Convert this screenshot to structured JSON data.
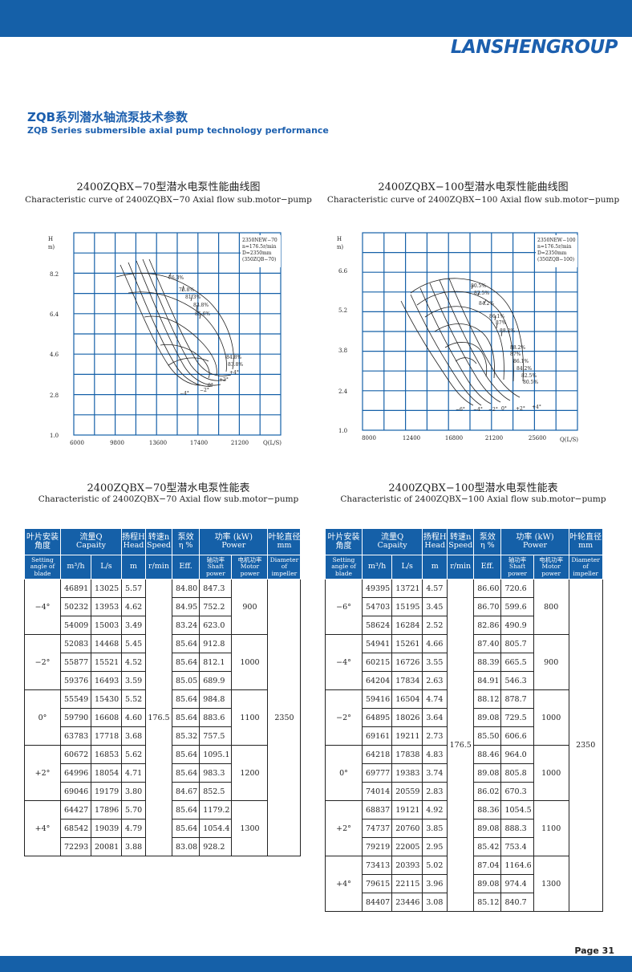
{
  "brand": "LANSHENGROUP",
  "section": {
    "title_cn": "ZQB系列潜水轴流泵技术参数",
    "title_en": "ZQB Series submersible axial pump technology performance"
  },
  "charts": [
    {
      "title_cn": "2400ZQBX−70型潜水电泵性能曲线图",
      "title_en": "Characteristic curve of 2400ZQBX−70 Axial flow sub.motor−pump",
      "y_label": "H",
      "y_unit": "(m)",
      "x_label": "Q(L/S)",
      "x_ticks": [
        "6000",
        "9800",
        "13600",
        "17400",
        "21200"
      ],
      "y_ticks": [
        "8.2",
        "6.4",
        "4.6",
        "2.8",
        "1.0"
      ],
      "info": [
        "2350NEW−70",
        "n=176.5r/min",
        "D=2350mm",
        "(350ZQB−70)"
      ],
      "eff_labels": [
        "76.3%",
        "78.8%",
        "81.3%",
        "83.8%",
        "85.6%",
        "84.8%",
        "83.8%"
      ],
      "angle_labels": [
        "−4°",
        "−2°",
        "0°",
        "+2°",
        "+4°"
      ]
    },
    {
      "title_cn": "2400ZQBX−100型潜水电泵性能曲线图",
      "title_en": "Characteristic curve of 2400ZQBX−100 Axial flow sub.motor−pump",
      "y_label": "H",
      "y_unit": "(m)",
      "x_label": "Q(L/S)",
      "x_ticks": [
        "8000",
        "12400",
        "16800",
        "21200",
        "25600"
      ],
      "y_ticks": [
        "6.6",
        "5.2",
        "3.8",
        "2.4",
        "1.0"
      ],
      "info": [
        "2350NEW−100",
        "n=176.5r/min",
        "D=2350mm",
        "(350ZQB−100)"
      ],
      "eff_labels": [
        "80.5%",
        "82.5%",
        "84.2%",
        "86.1%",
        "87%",
        "88.2%",
        "88.2%",
        "87%",
        "86.1%",
        "84.2%",
        "82.5%",
        "80.5%"
      ],
      "angle_labels": [
        "−6°",
        "−4°",
        "−2°",
        "0°",
        "+2°",
        "+4°"
      ]
    }
  ],
  "tables": [
    {
      "title_cn": "2400ZQBX−70型潜水电泵性能表",
      "title_en": "Characteristic  of 2400ZQBX−70 Axial flow sub.motor−pump",
      "speed": "176.5",
      "diameter": "2350",
      "groups": [
        {
          "angle": "−4°",
          "motor": "900",
          "rows": [
            [
              "46891",
              "13025",
              "5.57",
              "84.80",
              "847.3"
            ],
            [
              "50232",
              "13953",
              "4.62",
              "84.95",
              "752.2"
            ],
            [
              "54009",
              "15003",
              "3.49",
              "83.24",
              "623.0"
            ]
          ]
        },
        {
          "angle": "−2°",
          "motor": "1000",
          "rows": [
            [
              "52083",
              "14468",
              "5.45",
              "85.64",
              "912.8"
            ],
            [
              "55877",
              "15521",
              "4.52",
              "85.64",
              "812.1"
            ],
            [
              "59376",
              "16493",
              "3.59",
              "85.05",
              "689.9"
            ]
          ]
        },
        {
          "angle": "0°",
          "motor": "1100",
          "rows": [
            [
              "55549",
              "15430",
              "5.52",
              "85.64",
              "984.8"
            ],
            [
              "59790",
              "16608",
              "4.60",
              "85.64",
              "883.6"
            ],
            [
              "63783",
              "17718",
              "3.68",
              "85.32",
              "757.5"
            ]
          ]
        },
        {
          "angle": "+2°",
          "motor": "1200",
          "rows": [
            [
              "60672",
              "16853",
              "5.62",
              "85.64",
              "1095.1"
            ],
            [
              "64996",
              "18054",
              "4.71",
              "85.64",
              "983.3"
            ],
            [
              "69046",
              "19179",
              "3.80",
              "84.67",
              "852.5"
            ]
          ]
        },
        {
          "angle": "+4°",
          "motor": "1300",
          "rows": [
            [
              "64427",
              "17896",
              "5.70",
              "85.64",
              "1179.2"
            ],
            [
              "68542",
              "19039",
              "4.79",
              "85.64",
              "1054.4"
            ],
            [
              "72293",
              "20081",
              "3.88",
              "83.08",
              "928.2"
            ]
          ]
        }
      ]
    },
    {
      "title_cn": "2400ZQBX−100型潜水电泵性能表",
      "title_en": "Characteristic of 2400ZQBX−100 Axial flow sub.motor−pump",
      "speed": "176.5",
      "diameter": "2350",
      "groups": [
        {
          "angle": "−6°",
          "motor": "800",
          "rows": [
            [
              "49395",
              "13721",
              "4.57",
              "86.60",
              "720.6"
            ],
            [
              "54703",
              "15195",
              "3.45",
              "86.70",
              "599.6"
            ],
            [
              "58624",
              "16284",
              "2.52",
              "82.86",
              "490.9"
            ]
          ]
        },
        {
          "angle": "−4°",
          "motor": "900",
          "rows": [
            [
              "54941",
              "15261",
              "4.66",
              "87.40",
              "805.7"
            ],
            [
              "60215",
              "16726",
              "3.55",
              "88.39",
              "665.5"
            ],
            [
              "64204",
              "17834",
              "2.63",
              "84.91",
              "546.3"
            ]
          ]
        },
        {
          "angle": "−2°",
          "motor": "1000",
          "rows": [
            [
              "59416",
              "16504",
              "4.74",
              "88.12",
              "878.7"
            ],
            [
              "64895",
              "18026",
              "3.64",
              "89.08",
              "729.5"
            ],
            [
              "69161",
              "19211",
              "2.73",
              "85.50",
              "606.6"
            ]
          ]
        },
        {
          "angle": "0°",
          "motor": "1000",
          "rows": [
            [
              "64218",
              "17838",
              "4.83",
              "88.46",
              "964.0"
            ],
            [
              "69777",
              "19383",
              "3.74",
              "89.08",
              "805.8"
            ],
            [
              "74014",
              "20559",
              "2.83",
              "86.02",
              "670.3"
            ]
          ]
        },
        {
          "angle": "+2°",
          "motor": "1100",
          "rows": [
            [
              "68837",
              "19121",
              "4.92",
              "88.36",
              "1054.5"
            ],
            [
              "74737",
              "20760",
              "3.85",
              "89.08",
              "888.3"
            ],
            [
              "79219",
              "22005",
              "2.95",
              "85.42",
              "753.4"
            ]
          ]
        },
        {
          "angle": "+4°",
          "motor": "1300",
          "rows": [
            [
              "73413",
              "20393",
              "5.02",
              "87.04",
              "1164.6"
            ],
            [
              "79615",
              "22115",
              "3.96",
              "89.08",
              "974.4"
            ],
            [
              "84407",
              "23446",
              "3.08",
              "85.12",
              "840.7"
            ]
          ]
        }
      ]
    }
  ],
  "table_header": {
    "angle_cn": "叶片安装角度",
    "angle_en": "Setting angle of blade",
    "flow_cn": "流量Q",
    "flow_en": "Capaity",
    "flow_unit1": "m³/h",
    "flow_unit2": "L/s",
    "head_cn": "扬程H",
    "head_en": "Head",
    "head_unit": "m",
    "speed_cn": "转速n",
    "speed_en": "Speed",
    "speed_unit": "r/min",
    "eff_cn": "泵效",
    "eff_sym": "η %",
    "eff_en": "Eff.",
    "power_cn": "功率 (kW)",
    "power_en": "Power",
    "shaft_cn": "轴功率",
    "shaft_en": "Shaft power",
    "motor_cn": "电机功率",
    "motor_en": "Motor power",
    "dia_cn": "叶轮直径",
    "dia_unit": "mm",
    "dia_en": "Diameter of impeller"
  },
  "page": "Page 31",
  "colors": {
    "accent": "#1560a8",
    "brand": "#1c5fae"
  }
}
